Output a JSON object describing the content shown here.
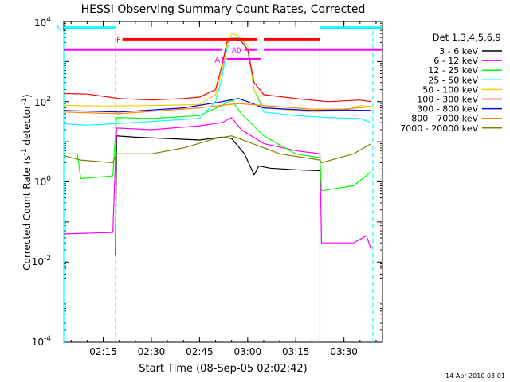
{
  "chart_data": {
    "type": "line",
    "title": "HESSI Observing Summary Count Rates, Corrected",
    "xlabel": "Start Time (08-Sep-05 02:02:42)",
    "ylabel": "Corrected Count Rate (s",
    "ylabel_sup": "-1",
    "ylabel_tail": " detector",
    "ylabel_end": ")",
    "x_unit": "UT",
    "xlim": [
      "02:02:42",
      "03:42:00"
    ],
    "ylim": [
      0.0001,
      10000
    ],
    "yscale": "log",
    "x_ticks": [
      "02:15",
      "02:30",
      "02:45",
      "03:00",
      "03:15",
      "03:30"
    ],
    "y_ticks": [
      {
        "value": 0.0001,
        "base": "10",
        "exp": "-4"
      },
      {
        "value": 0.01,
        "base": "10",
        "exp": "-2"
      },
      {
        "value": 1,
        "base": "10",
        "exp": "0"
      },
      {
        "value": 100,
        "base": "10",
        "exp": "2"
      },
      {
        "value": 10000,
        "base": "10",
        "exp": "4"
      }
    ],
    "legend_title": "Det 1,3,4,5,6,9",
    "legend_position": "right",
    "series": [
      {
        "name": "3 - 6 keV",
        "color": "#000000",
        "points": [
          [
            "02:18:50",
            0.015
          ],
          [
            "02:19:10",
            14
          ],
          [
            "02:25:00",
            13
          ],
          [
            "02:35:00",
            12
          ],
          [
            "02:45:00",
            11
          ],
          [
            "02:52:00",
            13
          ],
          [
            "02:55:00",
            12
          ],
          [
            "02:59:00",
            5
          ],
          [
            "03:02:00",
            1.5
          ],
          [
            "03:03:30",
            2.5
          ],
          [
            "03:07:00",
            2.2
          ],
          [
            "03:15:00",
            2
          ],
          [
            "03:22:30",
            1.9
          ]
        ]
      },
      {
        "name": "6 - 12 keV",
        "color": "#ff00ff",
        "points": [
          [
            "02:02:42",
            0.05
          ],
          [
            "02:18:00",
            0.055
          ],
          [
            "02:19:10",
            22
          ],
          [
            "02:30:00",
            20
          ],
          [
            "02:45:00",
            25
          ],
          [
            "02:52:00",
            30
          ],
          [
            "02:55:00",
            40
          ],
          [
            "02:58:00",
            20
          ],
          [
            "03:05:00",
            9
          ],
          [
            "03:15:00",
            6
          ],
          [
            "03:22:30",
            5
          ],
          [
            "03:23:00",
            0.03
          ],
          [
            "03:33:00",
            0.03
          ],
          [
            "03:37:00",
            0.045
          ],
          [
            "03:38:30",
            0.02
          ]
        ]
      },
      {
        "name": "12 - 25 keV",
        "color": "#00ff00",
        "points": [
          [
            "02:02:42",
            5
          ],
          [
            "02:07:00",
            5
          ],
          [
            "02:08:00",
            1.2
          ],
          [
            "02:18:00",
            1.4
          ],
          [
            "02:19:10",
            40
          ],
          [
            "02:30:00",
            38
          ],
          [
            "02:45:00",
            45
          ],
          [
            "02:52:00",
            80
          ],
          [
            "02:55:00",
            110
          ],
          [
            "02:58:00",
            50
          ],
          [
            "03:05:00",
            14
          ],
          [
            "03:15:00",
            5
          ],
          [
            "03:22:30",
            4
          ],
          [
            "03:23:00",
            0.6
          ],
          [
            "03:33:00",
            0.8
          ],
          [
            "03:38:30",
            1.8
          ]
        ]
      },
      {
        "name": "25 - 50 keV",
        "color": "#00ffff",
        "points": [
          [
            "02:02:42",
            28
          ],
          [
            "02:10:00",
            26
          ],
          [
            "02:18:00",
            28
          ],
          [
            "02:30:00",
            32
          ],
          [
            "02:45:00",
            38
          ],
          [
            "02:50:00",
            100
          ],
          [
            "02:52:00",
            400
          ],
          [
            "02:53:30",
            2000
          ],
          [
            "02:55:00",
            4000
          ],
          [
            "02:58:00",
            3800
          ],
          [
            "03:00:00",
            2000
          ],
          [
            "03:02:00",
            200
          ],
          [
            "03:05:00",
            55
          ],
          [
            "03:15:00",
            45
          ],
          [
            "03:25:00",
            40
          ],
          [
            "03:35:00",
            38
          ],
          [
            "03:38:30",
            30
          ]
        ]
      },
      {
        "name": "50 - 100 keV",
        "color": "#ffcc00",
        "points": [
          [
            "02:02:42",
            80
          ],
          [
            "02:18:00",
            78
          ],
          [
            "02:30:00",
            80
          ],
          [
            "02:45:00",
            85
          ],
          [
            "02:50:00",
            150
          ],
          [
            "02:52:00",
            600
          ],
          [
            "02:53:30",
            2500
          ],
          [
            "02:55:00",
            5000
          ],
          [
            "02:57:00",
            4500
          ],
          [
            "03:00:00",
            2500
          ],
          [
            "03:02:00",
            200
          ],
          [
            "03:05:00",
            70
          ],
          [
            "03:20:00",
            55
          ],
          [
            "03:30:00",
            60
          ],
          [
            "03:35:00",
            80
          ],
          [
            "03:38:30",
            75
          ]
        ]
      },
      {
        "name": "100 - 300 keV",
        "color": "#ff0000",
        "points": [
          [
            "02:02:42",
            160
          ],
          [
            "02:10:00",
            155
          ],
          [
            "02:20:00",
            120
          ],
          [
            "02:30:00",
            110
          ],
          [
            "02:40:00",
            120
          ],
          [
            "02:45:00",
            130
          ],
          [
            "02:50:00",
            200
          ],
          [
            "02:52:00",
            800
          ],
          [
            "02:53:30",
            3000
          ],
          [
            "02:55:00",
            3800
          ],
          [
            "02:58:00",
            3200
          ],
          [
            "03:00:00",
            2000
          ],
          [
            "03:02:00",
            300
          ],
          [
            "03:05:00",
            150
          ],
          [
            "03:15:00",
            120
          ],
          [
            "03:25:00",
            100
          ],
          [
            "03:35:00",
            110
          ],
          [
            "03:38:30",
            100
          ]
        ]
      },
      {
        "name": "300 - 800 keV",
        "color": "#0000ff",
        "points": [
          [
            "02:02:42",
            60
          ],
          [
            "02:20:00",
            55
          ],
          [
            "02:40:00",
            70
          ],
          [
            "02:52:00",
            100
          ],
          [
            "02:57:00",
            120
          ],
          [
            "03:00:00",
            100
          ],
          [
            "03:05:00",
            70
          ],
          [
            "03:20:00",
            60
          ],
          [
            "03:30:00",
            62
          ],
          [
            "03:38:30",
            60
          ]
        ]
      },
      {
        "name": "800 - 7000 keV",
        "color": "#ff8800",
        "points": [
          [
            "02:02:42",
            55
          ],
          [
            "02:20:00",
            50
          ],
          [
            "02:45:00",
            70
          ],
          [
            "02:57:00",
            90
          ],
          [
            "03:05:00",
            80
          ],
          [
            "03:20:00",
            65
          ],
          [
            "03:30:00",
            65
          ],
          [
            "03:38:30",
            75
          ]
        ]
      },
      {
        "name": "7000 - 20000 keV",
        "color": "#808000",
        "points": [
          [
            "02:02:42",
            4.5
          ],
          [
            "02:08:00",
            3.5
          ],
          [
            "02:18:00",
            3
          ],
          [
            "02:19:10",
            5
          ],
          [
            "02:30:00",
            5
          ],
          [
            "02:40:00",
            7
          ],
          [
            "02:50:00",
            12
          ],
          [
            "02:55:00",
            14
          ],
          [
            "03:00:00",
            10
          ],
          [
            "03:10:00",
            5
          ],
          [
            "03:22:30",
            3.5
          ],
          [
            "03:23:00",
            3
          ],
          [
            "03:33:00",
            5
          ],
          [
            "03:38:30",
            9
          ]
        ]
      }
    ],
    "state_bars": [
      {
        "label": "N",
        "color": "#00ffff",
        "y": 7000,
        "segments": [
          [
            "02:02:42",
            "02:18:50"
          ],
          [
            "03:22:30",
            "03:42:00"
          ]
        ]
      },
      {
        "label": "F",
        "color": "#ff0000",
        "y": 3600,
        "segments": [
          [
            "02:21:00",
            "03:03:00"
          ],
          [
            "03:05:00",
            "03:22:30"
          ]
        ]
      },
      {
        "label": "",
        "color": "#ff00ff",
        "y": 2000,
        "segments": [
          [
            "02:02:42",
            "02:52:00"
          ],
          [
            "02:59:00",
            "03:03:00"
          ],
          [
            "03:05:00",
            "03:42:00"
          ]
        ]
      },
      {
        "label": "A1",
        "color": "#ff00ff",
        "y": 1150,
        "segments": [
          [
            "02:53:30",
            "03:04:00"
          ]
        ]
      }
    ],
    "vertical_markers": [
      {
        "time": "02:02:42",
        "color": "#00ffff",
        "style": "solid"
      },
      {
        "time": "02:18:50",
        "color": "#00ffff",
        "style": "dashed"
      },
      {
        "time": "03:22:30",
        "color": "#00ffff",
        "style": "solid"
      },
      {
        "time": "03:39:00",
        "color": "#00ffff",
        "style": "dashed"
      }
    ],
    "annotations": [
      {
        "text": "A0",
        "time": "02:56:30",
        "y": 2000,
        "color": "#ff00ff"
      }
    ]
  },
  "footer": {
    "timestamp": "14-Apr-2010 03:01"
  }
}
